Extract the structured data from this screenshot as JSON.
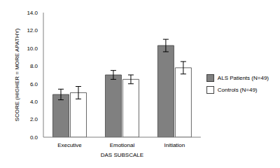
{
  "chart_data": {
    "type": "bar",
    "categories": [
      "Executive",
      "Emotional",
      "Initiation"
    ],
    "series": [
      {
        "name": "ALS Patients (N=49)",
        "color": "#808080",
        "values": [
          4.8,
          7.0,
          10.3
        ],
        "errors": [
          0.6,
          0.5,
          0.7
        ]
      },
      {
        "name": "Controls (N=49)",
        "color": "#ffffff",
        "values": [
          5.0,
          6.5,
          7.8
        ],
        "errors": [
          0.7,
          0.5,
          0.7
        ]
      }
    ],
    "x_label": "DAS SUBSCALE",
    "y_label": "SCORE (HIGHER = MORE APATHY)",
    "ylim": [
      0,
      14
    ],
    "yticks": [
      {
        "value": 0,
        "label": "0.0"
      },
      {
        "value": 2,
        "label": "2.0"
      },
      {
        "value": 4,
        "label": "4.0"
      },
      {
        "value": 6,
        "label": "6.0"
      },
      {
        "value": 8,
        "label": "8.0"
      },
      {
        "value": 10,
        "label": "10.0"
      },
      {
        "value": 12,
        "label": "12.0"
      },
      {
        "value": 14,
        "label": "14.0"
      }
    ],
    "grid": false,
    "legend": "right"
  }
}
